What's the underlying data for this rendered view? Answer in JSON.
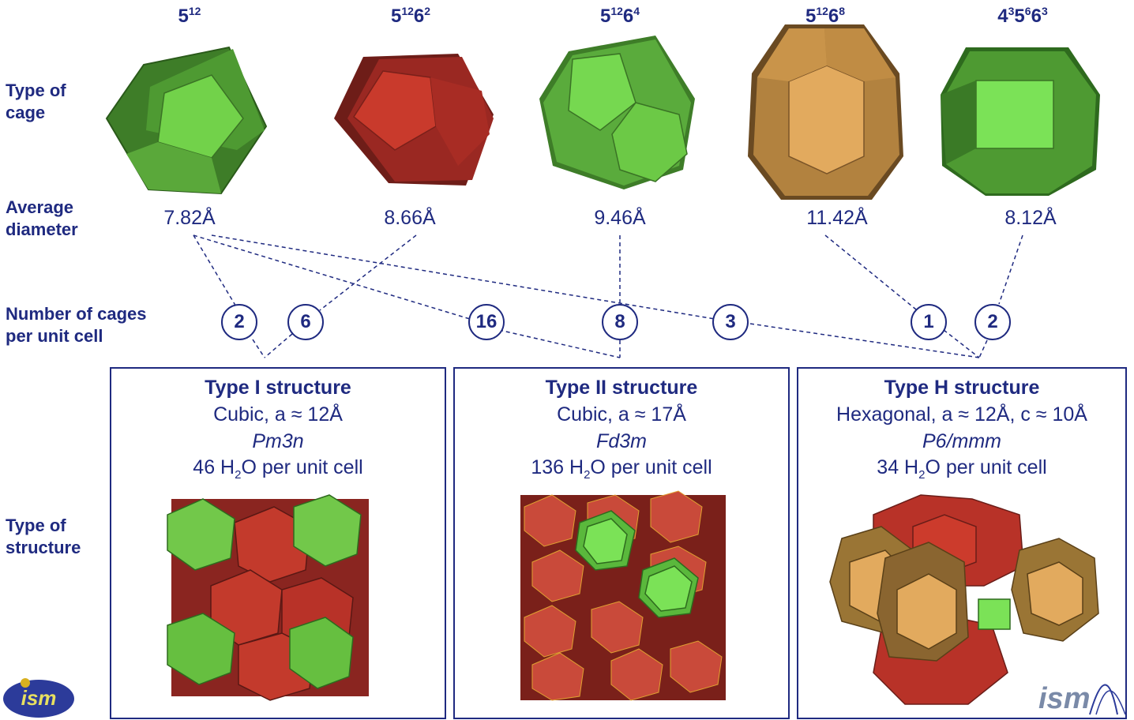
{
  "row_labels": {
    "type_of_cage": [
      "Type of",
      "cage"
    ],
    "average_diameter": [
      "Average",
      "diameter"
    ],
    "cages_per_cell": [
      "Number of cages",
      "per unit cell"
    ],
    "type_of_structure": [
      "Type of",
      "structure"
    ]
  },
  "cages": [
    {
      "base": "5",
      "sup1": "12",
      "mid": "",
      "sup2": "",
      "end": "",
      "sup3": "",
      "diameter": "7.82Å",
      "color": "#4e9a32"
    },
    {
      "base": "5",
      "sup1": "12",
      "mid": "6",
      "sup2": "2",
      "end": "",
      "sup3": "",
      "diameter": "8.66Å",
      "color": "#b8302a"
    },
    {
      "base": "5",
      "sup1": "12",
      "mid": "6",
      "sup2": "4",
      "end": "",
      "sup3": "",
      "diameter": "9.46Å",
      "color": "#5aab3c"
    },
    {
      "base": "5",
      "sup1": "12",
      "mid": "6",
      "sup2": "8",
      "end": "",
      "sup3": "",
      "diameter": "11.42Å",
      "color": "#c9944a"
    },
    {
      "base": "4",
      "sup1": "3",
      "mid": "5",
      "sup2": "6",
      "end": "6",
      "sup3": "3",
      "diameter": "8.12Å",
      "color": "#4e9a32"
    }
  ],
  "counts": [
    "2",
    "6",
    "16",
    "8",
    "3",
    "1",
    "2"
  ],
  "structures": [
    {
      "title": "Type I structure",
      "lattice": "Cubic, a ≈ 12Å",
      "space_group": "Pm3n",
      "water_pre": "46 H",
      "water_sub": "2",
      "water_post": "O per unit cell"
    },
    {
      "title": "Type II structure",
      "lattice": "Cubic, a ≈ 17Å",
      "space_group": "Fd3m",
      "water_pre": "136 H",
      "water_sub": "2",
      "water_post": "O per unit cell"
    },
    {
      "title": "Type H structure",
      "lattice": "Hexagonal, a ≈ 12Å, c ≈ 10Å",
      "space_group": "P6/mmm",
      "water_pre": "34 H",
      "water_sub": "2",
      "water_post": "O per unit cell"
    }
  ],
  "colors": {
    "green": "#5cb83c",
    "green_light": "#78d64e",
    "red": "#b8302a",
    "red_light": "#cc3b2c",
    "tan": "#c9944a",
    "tan_light": "#e2aa5e",
    "navy": "#1f2a80"
  },
  "logos": {
    "left": "ism",
    "right": "ism"
  }
}
